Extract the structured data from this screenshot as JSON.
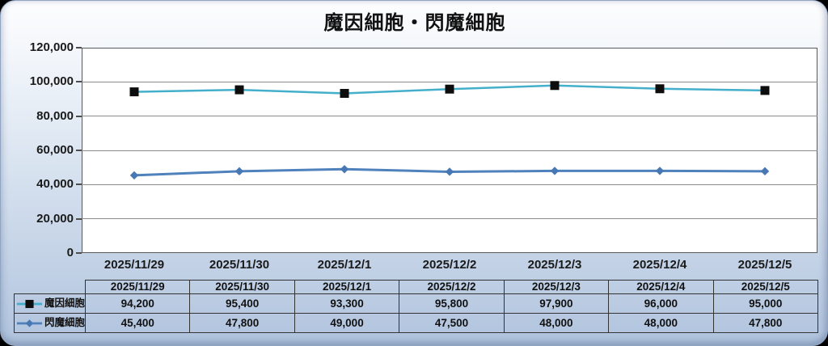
{
  "title": "魔因細胞・閃魔細胞",
  "chart_data": {
    "type": "line",
    "title": "魔因細胞・閃魔細胞",
    "categories": [
      "2025/11/29",
      "2025/11/30",
      "2025/12/1",
      "2025/12/2",
      "2025/12/3",
      "2025/12/4",
      "2025/12/5"
    ],
    "series": [
      {
        "name": "魔因細胞",
        "line_color": "#44AFCB",
        "marker": "square",
        "marker_color": "#0d0d0d",
        "values": [
          94200,
          95400,
          93300,
          95800,
          97900,
          96000,
          95000
        ]
      },
      {
        "name": "閃魔細胞",
        "line_color": "#4F81BD",
        "marker": "diamond",
        "marker_color": "#4878B4",
        "values": [
          45400,
          47800,
          49000,
          47500,
          48000,
          48000,
          47800
        ]
      }
    ],
    "ylim": [
      0,
      120000
    ],
    "ytick_step": 20000,
    "ytick_labels": [
      "0",
      "20,000",
      "40,000",
      "60,000",
      "80,000",
      "100,000",
      "120,000"
    ],
    "grid": true,
    "legend_position": "table-rows-left"
  },
  "table": {
    "header_dates": [
      "2025/11/29",
      "2025/11/30",
      "2025/12/1",
      "2025/12/2",
      "2025/12/3",
      "2025/12/4",
      "2025/12/5"
    ],
    "rows": [
      {
        "label": "魔因細胞",
        "values": [
          "94,200",
          "95,400",
          "93,300",
          "95,800",
          "97,900",
          "96,000",
          "95,000"
        ]
      },
      {
        "label": "閃魔細胞",
        "values": [
          "45,400",
          "47,800",
          "49,000",
          "47,500",
          "48,000",
          "48,000",
          "47,800"
        ]
      }
    ]
  },
  "colors": {
    "series1_line": "#44AFCB",
    "series1_marker": "#0d0d0d",
    "series2_line": "#4F81BD",
    "series2_marker": "#4878B4",
    "panel_gradient_top": "#fdfdfe",
    "panel_gradient_bottom": "#b1c4de",
    "plot_background": "#ffffff",
    "gridline": "#8c8c8c",
    "table_border": "#333333",
    "text": "#111111"
  }
}
